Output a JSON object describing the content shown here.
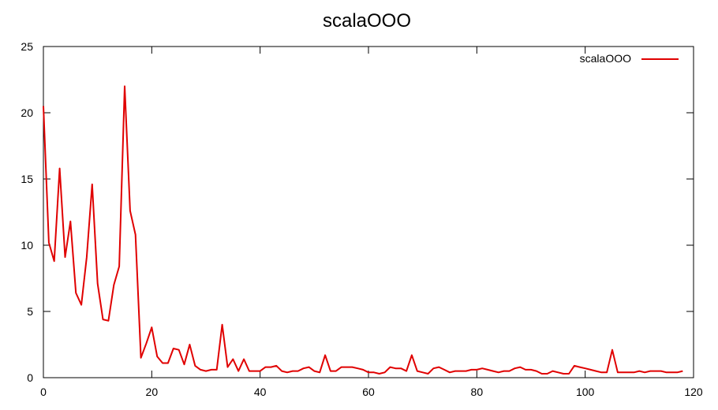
{
  "chart_data": {
    "type": "line",
    "title": "scalaOOO",
    "xlabel": "",
    "ylabel": "",
    "xlim": [
      0,
      120
    ],
    "ylim": [
      0,
      25
    ],
    "xticks": [
      0,
      20,
      40,
      60,
      80,
      100,
      120
    ],
    "yticks": [
      0,
      5,
      10,
      15,
      20,
      25
    ],
    "grid": false,
    "legend_position": "top-right",
    "series": [
      {
        "name": "scalaOOO",
        "color": "#e00000",
        "x": [
          0,
          1,
          2,
          3,
          4,
          5,
          6,
          7,
          8,
          9,
          10,
          11,
          12,
          13,
          14,
          15,
          16,
          17,
          18,
          19,
          20,
          21,
          22,
          23,
          24,
          25,
          26,
          27,
          28,
          29,
          30,
          31,
          32,
          33,
          34,
          35,
          36,
          37,
          38,
          39,
          40,
          41,
          42,
          43,
          44,
          45,
          46,
          47,
          48,
          49,
          50,
          51,
          52,
          53,
          54,
          55,
          56,
          57,
          58,
          59,
          60,
          61,
          62,
          63,
          64,
          65,
          66,
          67,
          68,
          69,
          70,
          71,
          72,
          73,
          74,
          75,
          76,
          77,
          78,
          79,
          80,
          81,
          82,
          83,
          84,
          85,
          86,
          87,
          88,
          89,
          90,
          91,
          92,
          93,
          94,
          95,
          96,
          97,
          98,
          99,
          100,
          101,
          102,
          103,
          104,
          105,
          106,
          107,
          108,
          109,
          110,
          111,
          112,
          113,
          114,
          115,
          116,
          117,
          118
        ],
        "y": [
          20.5,
          10.2,
          8.8,
          15.8,
          9.1,
          11.8,
          6.4,
          5.5,
          9.1,
          14.6,
          7.1,
          4.4,
          4.3,
          7.0,
          8.4,
          22.0,
          12.6,
          10.8,
          1.5,
          2.6,
          3.8,
          1.6,
          1.1,
          1.1,
          2.2,
          2.1,
          1.0,
          2.5,
          0.9,
          0.6,
          0.5,
          0.6,
          0.6,
          4.0,
          0.8,
          1.4,
          0.5,
          1.4,
          0.5,
          0.5,
          0.5,
          0.8,
          0.8,
          0.9,
          0.5,
          0.4,
          0.5,
          0.5,
          0.7,
          0.8,
          0.5,
          0.4,
          1.7,
          0.5,
          0.5,
          0.8,
          0.8,
          0.8,
          0.7,
          0.6,
          0.4,
          0.4,
          0.3,
          0.4,
          0.8,
          0.7,
          0.7,
          0.5,
          1.7,
          0.5,
          0.4,
          0.3,
          0.7,
          0.8,
          0.6,
          0.4,
          0.5,
          0.5,
          0.5,
          0.6,
          0.6,
          0.7,
          0.6,
          0.5,
          0.4,
          0.5,
          0.5,
          0.7,
          0.8,
          0.6,
          0.6,
          0.5,
          0.3,
          0.3,
          0.5,
          0.4,
          0.3,
          0.3,
          0.9,
          0.8,
          0.7,
          0.6,
          0.5,
          0.4,
          0.4,
          2.1,
          0.4,
          0.4,
          0.4,
          0.4,
          0.5,
          0.4,
          0.5,
          0.5,
          0.5,
          0.4,
          0.4,
          0.4,
          0.5
        ]
      }
    ]
  }
}
